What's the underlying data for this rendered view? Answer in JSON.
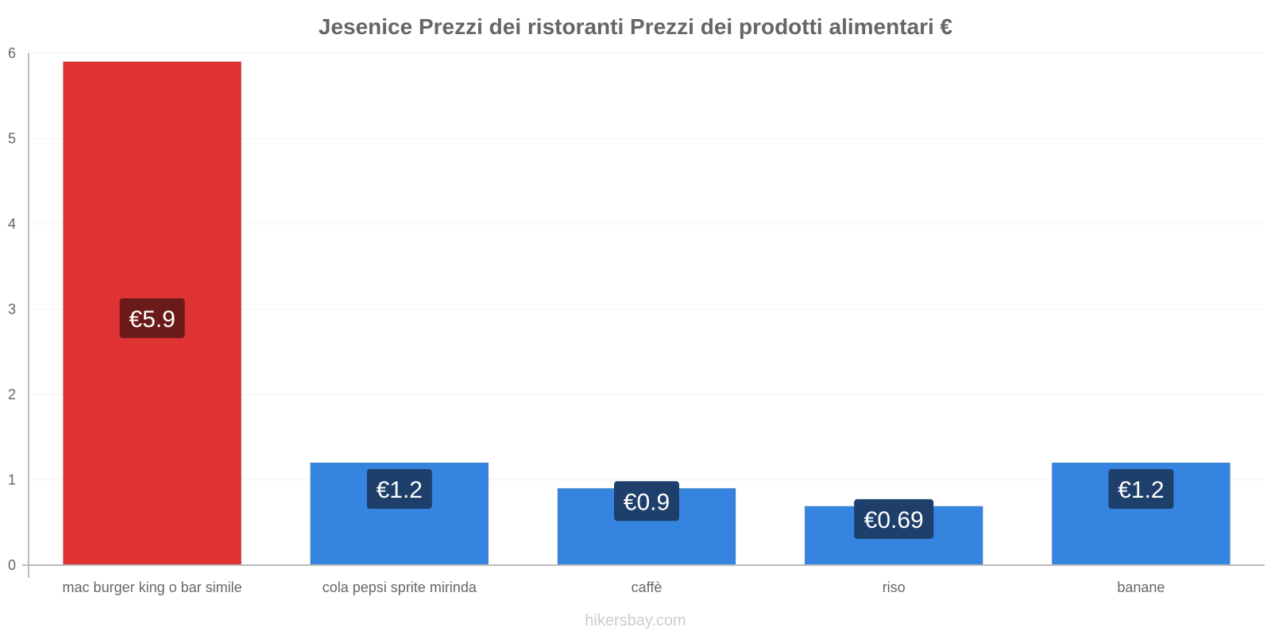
{
  "chart_data": {
    "type": "bar",
    "title": "Jesenice Prezzi dei ristoranti Prezzi dei prodotti alimentari €",
    "xlabel": "",
    "ylabel": "",
    "ylim": [
      0,
      6
    ],
    "yticks": [
      "0",
      "1",
      "2",
      "3",
      "4",
      "5",
      "6"
    ],
    "categories": [
      "mac burger king o bar simile",
      "cola pepsi sprite mirinda",
      "caffè",
      "riso",
      "banane"
    ],
    "values": [
      5.9,
      1.2,
      0.9,
      0.69,
      1.2
    ],
    "value_labels": [
      "€5.9",
      "€1.2",
      "€0.9",
      "€0.69",
      "€1.2"
    ],
    "bar_colors": [
      "#e03434",
      "#3584e0",
      "#3584e0",
      "#3584e0",
      "#3584e0"
    ],
    "label_colors": [
      "#6b1a1a",
      "#1e3f6b",
      "#1e3f6b",
      "#1e3f6b",
      "#1e3f6b"
    ],
    "grid": true
  },
  "watermark": "hikersbay.com"
}
